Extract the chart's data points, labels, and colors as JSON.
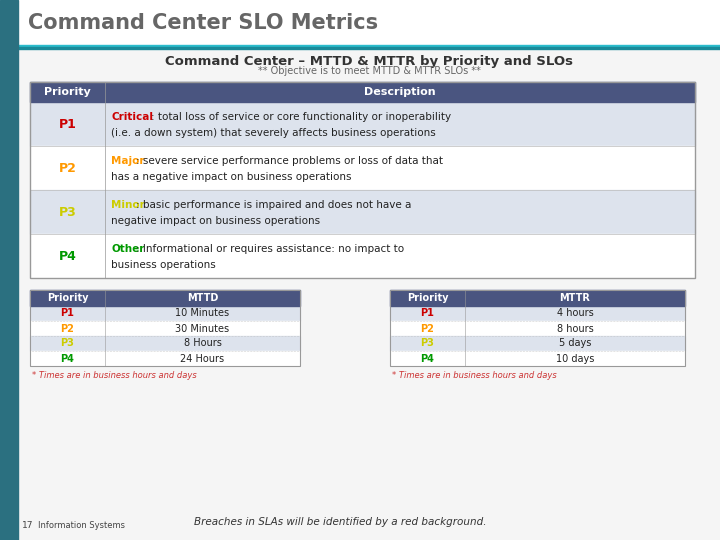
{
  "title_main": "Command Center SLO Metrics",
  "title_sub": "Command Center – MTTD & MTTR by Priority and SLOs",
  "title_sub2": "** Objective is to meet MTTD & MTTR SLOs **",
  "header_bg": "#4a5580",
  "header_fg": "#ffffff",
  "row_bg_odd": "#dde3ed",
  "row_bg_even": "#ffffff",
  "priority_colors": [
    "#cc0000",
    "#ff9900",
    "#cccc00",
    "#009900"
  ],
  "priorities": [
    "P1",
    "P2",
    "P3",
    "P4"
  ],
  "desc_labels": [
    "Critical",
    "Major",
    "Minor",
    "Other"
  ],
  "desc_label_colors": [
    "#cc0000",
    "#ff9900",
    "#cccc00",
    "#009900"
  ],
  "desc_line1": [
    ": total loss of service or core functionality or inoperability",
    ": severe service performance problems or loss of data that",
    ": basic performance is impaired and does not have a",
    ": Informational or requires assistance: no impact to"
  ],
  "desc_line2": [
    "(i.e. a down system) that severely affects business operations",
    "has a negative impact on business operations",
    "negative impact on business operations",
    "business operations"
  ],
  "mttd_values": [
    "10 Minutes",
    "30 Minutes",
    "8 Hours",
    "24 Hours"
  ],
  "mttr_values": [
    "4 hours",
    "8 hours",
    "5 days",
    "10 days"
  ],
  "footnote": "* Times are in business hours and days",
  "footer_text": "Breaches in SLAs will be identified by a red background.",
  "slide_number": "17",
  "info_systems": "Information Systems",
  "top_bar_color": "#2b7080",
  "left_bar_color": "#2b7080",
  "title_color": "#666666",
  "subtitle_color": "#333333",
  "subtitle2_color": "#666666",
  "content_bg": "#f5f5f5"
}
